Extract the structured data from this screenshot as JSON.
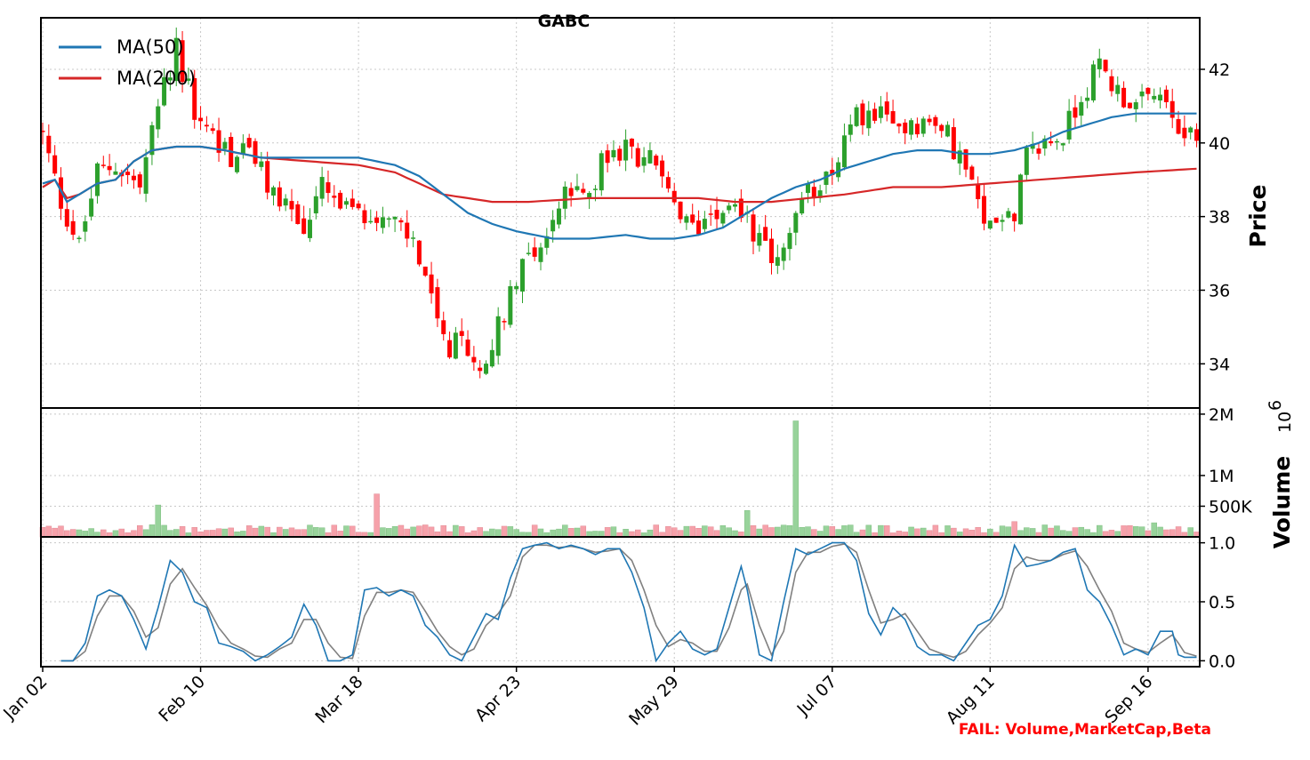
{
  "chart_data": {
    "type": "candlestick",
    "title": "GABC",
    "colors": {
      "up": "#2ca02c",
      "down": "#ff0000",
      "ma50": "#1f77b4",
      "ma200": "#d62728",
      "vol_up": "#98d39b",
      "vol_down": "#f6a1aa",
      "stoch_k": "#1f77b4",
      "stoch_d": "#808080",
      "fail": "#ff0000"
    },
    "x_tick_labels": [
      "Jan 02",
      "Feb 10",
      "Mar 18",
      "Apr 23",
      "May 29",
      "Jul 07",
      "Aug 11",
      "Sep 16"
    ],
    "x_tick_index": [
      0,
      26,
      52,
      78,
      104,
      130,
      156,
      182
    ],
    "n_sessions": 191,
    "price_panel": {
      "ylabel": "Price",
      "ylim": [
        32.8,
        43.4
      ],
      "yticks": [
        34,
        36,
        38,
        40,
        42
      ],
      "legend_position": "top-left",
      "legend": [
        {
          "name": "MA(50)",
          "color": "#1f77b4"
        },
        {
          "name": "MA(200)",
          "color": "#d62728"
        }
      ],
      "close_anchors": [
        [
          0,
          40.2
        ],
        [
          3,
          38.4
        ],
        [
          6,
          37.2
        ],
        [
          9,
          39.2
        ],
        [
          12,
          39.4
        ],
        [
          16,
          38.8
        ],
        [
          19,
          41.0
        ],
        [
          22,
          42.6
        ],
        [
          25,
          40.8
        ],
        [
          28,
          40.2
        ],
        [
          31,
          39.6
        ],
        [
          34,
          39.9
        ],
        [
          37,
          38.8
        ],
        [
          40,
          38.4
        ],
        [
          43,
          37.6
        ],
        [
          46,
          38.8
        ],
        [
          49,
          38.2
        ],
        [
          52,
          38.0
        ],
        [
          55,
          38.0
        ],
        [
          58,
          37.8
        ],
        [
          61,
          37.3
        ],
        [
          63,
          36.4
        ],
        [
          65,
          35.0
        ],
        [
          67,
          34.2
        ],
        [
          69,
          34.8
        ],
        [
          71,
          33.8
        ],
        [
          73,
          34.3
        ],
        [
          75,
          35.0
        ],
        [
          77,
          36.0
        ],
        [
          79,
          36.9
        ],
        [
          81,
          37.1
        ],
        [
          83,
          37.5
        ],
        [
          86,
          38.6
        ],
        [
          89,
          38.5
        ],
        [
          92,
          39.4
        ],
        [
          95,
          39.8
        ],
        [
          98,
          39.7
        ],
        [
          101,
          39.5
        ],
        [
          104,
          38.1
        ],
        [
          107,
          37.6
        ],
        [
          110,
          38.2
        ],
        [
          113,
          38.4
        ],
        [
          116,
          38.0
        ],
        [
          119,
          37.0
        ],
        [
          122,
          37.0
        ],
        [
          125,
          38.4
        ],
        [
          128,
          39.0
        ],
        [
          131,
          39.6
        ],
        [
          134,
          40.7
        ],
        [
          137,
          40.8
        ],
        [
          140,
          40.4
        ],
        [
          143,
          40.6
        ],
        [
          146,
          40.5
        ],
        [
          149,
          40.2
        ],
        [
          152,
          39.3
        ],
        [
          155,
          37.7
        ],
        [
          158,
          38.2
        ],
        [
          160,
          38.1
        ],
        [
          162,
          39.6
        ],
        [
          165,
          40.0
        ],
        [
          168,
          40.2
        ],
        [
          171,
          41.3
        ],
        [
          174,
          42.1
        ],
        [
          177,
          41.4
        ],
        [
          180,
          41.0
        ],
        [
          183,
          41.2
        ],
        [
          186,
          40.6
        ],
        [
          189,
          40.2
        ],
        [
          190,
          40.0
        ]
      ],
      "ma50_anchors": [
        [
          0,
          38.9
        ],
        [
          2,
          39.0
        ],
        [
          4,
          38.4
        ],
        [
          6,
          38.6
        ],
        [
          9,
          38.9
        ],
        [
          12,
          39.0
        ],
        [
          15,
          39.5
        ],
        [
          18,
          39.8
        ],
        [
          22,
          39.9
        ],
        [
          26,
          39.9
        ],
        [
          30,
          39.8
        ],
        [
          36,
          39.6
        ],
        [
          44,
          39.6
        ],
        [
          52,
          39.6
        ],
        [
          58,
          39.4
        ],
        [
          62,
          39.1
        ],
        [
          66,
          38.6
        ],
        [
          70,
          38.1
        ],
        [
          74,
          37.8
        ],
        [
          78,
          37.6
        ],
        [
          84,
          37.4
        ],
        [
          90,
          37.4
        ],
        [
          96,
          37.5
        ],
        [
          100,
          37.4
        ],
        [
          104,
          37.4
        ],
        [
          108,
          37.5
        ],
        [
          112,
          37.7
        ],
        [
          116,
          38.1
        ],
        [
          120,
          38.5
        ],
        [
          124,
          38.8
        ],
        [
          128,
          39.0
        ],
        [
          132,
          39.3
        ],
        [
          136,
          39.5
        ],
        [
          140,
          39.7
        ],
        [
          144,
          39.8
        ],
        [
          148,
          39.8
        ],
        [
          152,
          39.7
        ],
        [
          156,
          39.7
        ],
        [
          160,
          39.8
        ],
        [
          164,
          40.0
        ],
        [
          168,
          40.3
        ],
        [
          172,
          40.5
        ],
        [
          176,
          40.7
        ],
        [
          180,
          40.8
        ],
        [
          184,
          40.8
        ],
        [
          188,
          40.8
        ],
        [
          190,
          40.8
        ]
      ],
      "ma200_anchors": [
        [
          0,
          38.8
        ],
        [
          2,
          39.0
        ],
        [
          4,
          38.5
        ],
        [
          6,
          38.6
        ],
        [
          9,
          38.9
        ],
        [
          12,
          39.0
        ],
        [
          15,
          39.5
        ],
        [
          18,
          39.8
        ],
        [
          22,
          39.9
        ],
        [
          26,
          39.9
        ],
        [
          30,
          39.8
        ],
        [
          36,
          39.6
        ],
        [
          44,
          39.5
        ],
        [
          52,
          39.4
        ],
        [
          58,
          39.2
        ],
        [
          62,
          38.9
        ],
        [
          66,
          38.6
        ],
        [
          70,
          38.5
        ],
        [
          74,
          38.4
        ],
        [
          80,
          38.4
        ],
        [
          90,
          38.5
        ],
        [
          100,
          38.5
        ],
        [
          108,
          38.5
        ],
        [
          114,
          38.4
        ],
        [
          120,
          38.4
        ],
        [
          126,
          38.5
        ],
        [
          132,
          38.6
        ],
        [
          140,
          38.8
        ],
        [
          148,
          38.8
        ],
        [
          156,
          38.9
        ],
        [
          164,
          39.0
        ],
        [
          172,
          39.1
        ],
        [
          180,
          39.2
        ],
        [
          190,
          39.3
        ]
      ]
    },
    "volume_panel": {
      "ylabel": "Volume",
      "exponent_label": "10",
      "exponent_power": "6",
      "ylim": [
        0,
        2.1
      ],
      "yticks": [
        0.5,
        1.0,
        2.0
      ],
      "ytick_labels": [
        "500K",
        "1M",
        "2M"
      ],
      "base_volume": 0.11,
      "spikes": [
        [
          19,
          0.52
        ],
        [
          55,
          0.7
        ],
        [
          116,
          0.43
        ],
        [
          124,
          1.89
        ],
        [
          160,
          0.25
        ],
        [
          183,
          0.23
        ]
      ]
    },
    "stoch_panel": {
      "ylim": [
        -0.05,
        1.05
      ],
      "yticks": [
        0.0,
        0.5,
        1.0
      ],
      "ytick_labels": [
        "0.0",
        "0.5",
        "1.0"
      ],
      "k_anchors": [
        [
          3,
          0.0
        ],
        [
          5,
          0.0
        ],
        [
          7,
          0.15
        ],
        [
          9,
          0.55
        ],
        [
          11,
          0.6
        ],
        [
          13,
          0.55
        ],
        [
          15,
          0.35
        ],
        [
          17,
          0.1
        ],
        [
          19,
          0.45
        ],
        [
          21,
          0.85
        ],
        [
          23,
          0.75
        ],
        [
          25,
          0.5
        ],
        [
          27,
          0.45
        ],
        [
          29,
          0.15
        ],
        [
          31,
          0.12
        ],
        [
          33,
          0.08
        ],
        [
          35,
          0.0
        ],
        [
          37,
          0.05
        ],
        [
          39,
          0.12
        ],
        [
          41,
          0.2
        ],
        [
          43,
          0.48
        ],
        [
          45,
          0.3
        ],
        [
          47,
          0.0
        ],
        [
          49,
          0.0
        ],
        [
          51,
          0.05
        ],
        [
          53,
          0.6
        ],
        [
          55,
          0.62
        ],
        [
          57,
          0.55
        ],
        [
          59,
          0.6
        ],
        [
          61,
          0.55
        ],
        [
          63,
          0.3
        ],
        [
          65,
          0.2
        ],
        [
          67,
          0.05
        ],
        [
          69,
          0.0
        ],
        [
          71,
          0.2
        ],
        [
          73,
          0.4
        ],
        [
          75,
          0.35
        ],
        [
          77,
          0.7
        ],
        [
          79,
          0.95
        ],
        [
          81,
          0.98
        ],
        [
          83,
          1.0
        ],
        [
          85,
          0.95
        ],
        [
          87,
          0.98
        ],
        [
          89,
          0.95
        ],
        [
          91,
          0.9
        ],
        [
          93,
          0.95
        ],
        [
          95,
          0.95
        ],
        [
          97,
          0.75
        ],
        [
          99,
          0.45
        ],
        [
          101,
          0.0
        ],
        [
          103,
          0.15
        ],
        [
          105,
          0.25
        ],
        [
          107,
          0.1
        ],
        [
          109,
          0.05
        ],
        [
          111,
          0.1
        ],
        [
          113,
          0.45
        ],
        [
          115,
          0.8
        ],
        [
          116,
          0.6
        ],
        [
          118,
          0.05
        ],
        [
          120,
          0.0
        ],
        [
          122,
          0.5
        ],
        [
          124,
          0.95
        ],
        [
          126,
          0.9
        ],
        [
          128,
          0.95
        ],
        [
          130,
          1.0
        ],
        [
          132,
          1.0
        ],
        [
          134,
          0.85
        ],
        [
          136,
          0.4
        ],
        [
          138,
          0.22
        ],
        [
          140,
          0.45
        ],
        [
          142,
          0.35
        ],
        [
          144,
          0.12
        ],
        [
          146,
          0.05
        ],
        [
          148,
          0.05
        ],
        [
          150,
          0.0
        ],
        [
          152,
          0.15
        ],
        [
          154,
          0.3
        ],
        [
          156,
          0.35
        ],
        [
          158,
          0.55
        ],
        [
          160,
          0.98
        ],
        [
          162,
          0.8
        ],
        [
          164,
          0.82
        ],
        [
          166,
          0.85
        ],
        [
          168,
          0.92
        ],
        [
          170,
          0.95
        ],
        [
          172,
          0.6
        ],
        [
          174,
          0.5
        ],
        [
          176,
          0.3
        ],
        [
          178,
          0.05
        ],
        [
          180,
          0.1
        ],
        [
          182,
          0.05
        ],
        [
          184,
          0.25
        ],
        [
          186,
          0.25
        ],
        [
          187,
          0.05
        ],
        [
          188,
          0.03
        ],
        [
          190,
          0.03
        ]
      ],
      "d_anchors": [
        [
          3,
          0.0
        ],
        [
          5,
          0.0
        ],
        [
          7,
          0.08
        ],
        [
          9,
          0.38
        ],
        [
          11,
          0.55
        ],
        [
          13,
          0.55
        ],
        [
          15,
          0.42
        ],
        [
          17,
          0.2
        ],
        [
          19,
          0.28
        ],
        [
          21,
          0.65
        ],
        [
          23,
          0.78
        ],
        [
          25,
          0.62
        ],
        [
          27,
          0.47
        ],
        [
          29,
          0.28
        ],
        [
          31,
          0.15
        ],
        [
          33,
          0.1
        ],
        [
          35,
          0.04
        ],
        [
          37,
          0.03
        ],
        [
          39,
          0.1
        ],
        [
          41,
          0.15
        ],
        [
          43,
          0.35
        ],
        [
          45,
          0.35
        ],
        [
          47,
          0.15
        ],
        [
          49,
          0.03
        ],
        [
          51,
          0.02
        ],
        [
          53,
          0.38
        ],
        [
          55,
          0.58
        ],
        [
          57,
          0.58
        ],
        [
          59,
          0.6
        ],
        [
          61,
          0.58
        ],
        [
          63,
          0.42
        ],
        [
          65,
          0.25
        ],
        [
          67,
          0.12
        ],
        [
          69,
          0.05
        ],
        [
          71,
          0.1
        ],
        [
          73,
          0.3
        ],
        [
          75,
          0.4
        ],
        [
          77,
          0.55
        ],
        [
          79,
          0.88
        ],
        [
          81,
          0.98
        ],
        [
          83,
          0.98
        ],
        [
          85,
          0.96
        ],
        [
          87,
          0.97
        ],
        [
          89,
          0.95
        ],
        [
          91,
          0.92
        ],
        [
          93,
          0.93
        ],
        [
          95,
          0.95
        ],
        [
          97,
          0.85
        ],
        [
          99,
          0.6
        ],
        [
          101,
          0.3
        ],
        [
          103,
          0.12
        ],
        [
          105,
          0.18
        ],
        [
          107,
          0.15
        ],
        [
          109,
          0.08
        ],
        [
          111,
          0.08
        ],
        [
          113,
          0.28
        ],
        [
          115,
          0.6
        ],
        [
          116,
          0.65
        ],
        [
          118,
          0.3
        ],
        [
          120,
          0.05
        ],
        [
          122,
          0.25
        ],
        [
          124,
          0.75
        ],
        [
          126,
          0.92
        ],
        [
          128,
          0.92
        ],
        [
          130,
          0.97
        ],
        [
          132,
          0.99
        ],
        [
          134,
          0.92
        ],
        [
          136,
          0.6
        ],
        [
          138,
          0.32
        ],
        [
          140,
          0.35
        ],
        [
          142,
          0.4
        ],
        [
          144,
          0.25
        ],
        [
          146,
          0.1
        ],
        [
          148,
          0.06
        ],
        [
          150,
          0.03
        ],
        [
          152,
          0.08
        ],
        [
          154,
          0.22
        ],
        [
          156,
          0.32
        ],
        [
          158,
          0.45
        ],
        [
          160,
          0.78
        ],
        [
          162,
          0.88
        ],
        [
          164,
          0.85
        ],
        [
          166,
          0.85
        ],
        [
          168,
          0.9
        ],
        [
          170,
          0.93
        ],
        [
          172,
          0.8
        ],
        [
          174,
          0.6
        ],
        [
          176,
          0.42
        ],
        [
          178,
          0.15
        ],
        [
          180,
          0.1
        ],
        [
          182,
          0.07
        ],
        [
          184,
          0.15
        ],
        [
          186,
          0.22
        ],
        [
          187,
          0.15
        ],
        [
          188,
          0.07
        ],
        [
          190,
          0.04
        ]
      ]
    },
    "annotation": "FAIL: Volume,MarketCap,Beta"
  }
}
